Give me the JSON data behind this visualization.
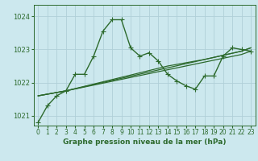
{
  "title": "Graphe pression niveau de la mer (hPa)",
  "background_color": "#cce8ee",
  "grid_color": "#b0d0d8",
  "line_color": "#2d6a2d",
  "xlim": [
    -0.5,
    23.5
  ],
  "ylim": [
    1020.7,
    1024.35
  ],
  "yticks": [
    1021,
    1022,
    1023,
    1024
  ],
  "xticks": [
    0,
    1,
    2,
    3,
    4,
    5,
    6,
    7,
    8,
    9,
    10,
    11,
    12,
    13,
    14,
    15,
    16,
    17,
    18,
    19,
    20,
    21,
    22,
    23
  ],
  "series": [
    {
      "x": [
        0,
        1,
        2,
        3,
        4,
        5,
        6,
        7,
        8,
        9,
        10,
        11,
        12,
        13,
        14,
        15,
        16,
        17,
        18,
        19,
        20,
        21,
        22,
        23
      ],
      "y": [
        1020.8,
        1021.3,
        1021.6,
        1021.75,
        1022.25,
        1022.25,
        1022.8,
        1023.55,
        1023.9,
        1023.9,
        1023.05,
        1022.8,
        1022.9,
        1022.65,
        1022.25,
        1022.05,
        1021.9,
        1021.8,
        1022.2,
        1022.2,
        1022.8,
        1023.05,
        1023.0,
        1022.95
      ],
      "marker": true,
      "lw": 1.0
    },
    {
      "x": [
        0,
        3,
        22,
        23
      ],
      "y": [
        1021.6,
        1021.75,
        1022.95,
        1023.05
      ],
      "marker": false,
      "lw": 0.9
    },
    {
      "x": [
        0,
        3,
        22,
        23
      ],
      "y": [
        1021.6,
        1021.75,
        1022.85,
        1022.95
      ],
      "marker": false,
      "lw": 0.9
    },
    {
      "x": [
        0,
        3,
        14,
        15,
        16,
        17,
        18,
        22,
        23
      ],
      "y": [
        1021.6,
        1021.75,
        1022.5,
        1022.55,
        1022.6,
        1022.65,
        1022.7,
        1022.95,
        1023.05
      ],
      "marker": false,
      "lw": 0.9
    }
  ],
  "marker_style": "+",
  "marker_size": 4.0,
  "ylabel_fontsize": 6,
  "xlabel_fontsize": 6.5,
  "tick_fontsize": 5.5
}
